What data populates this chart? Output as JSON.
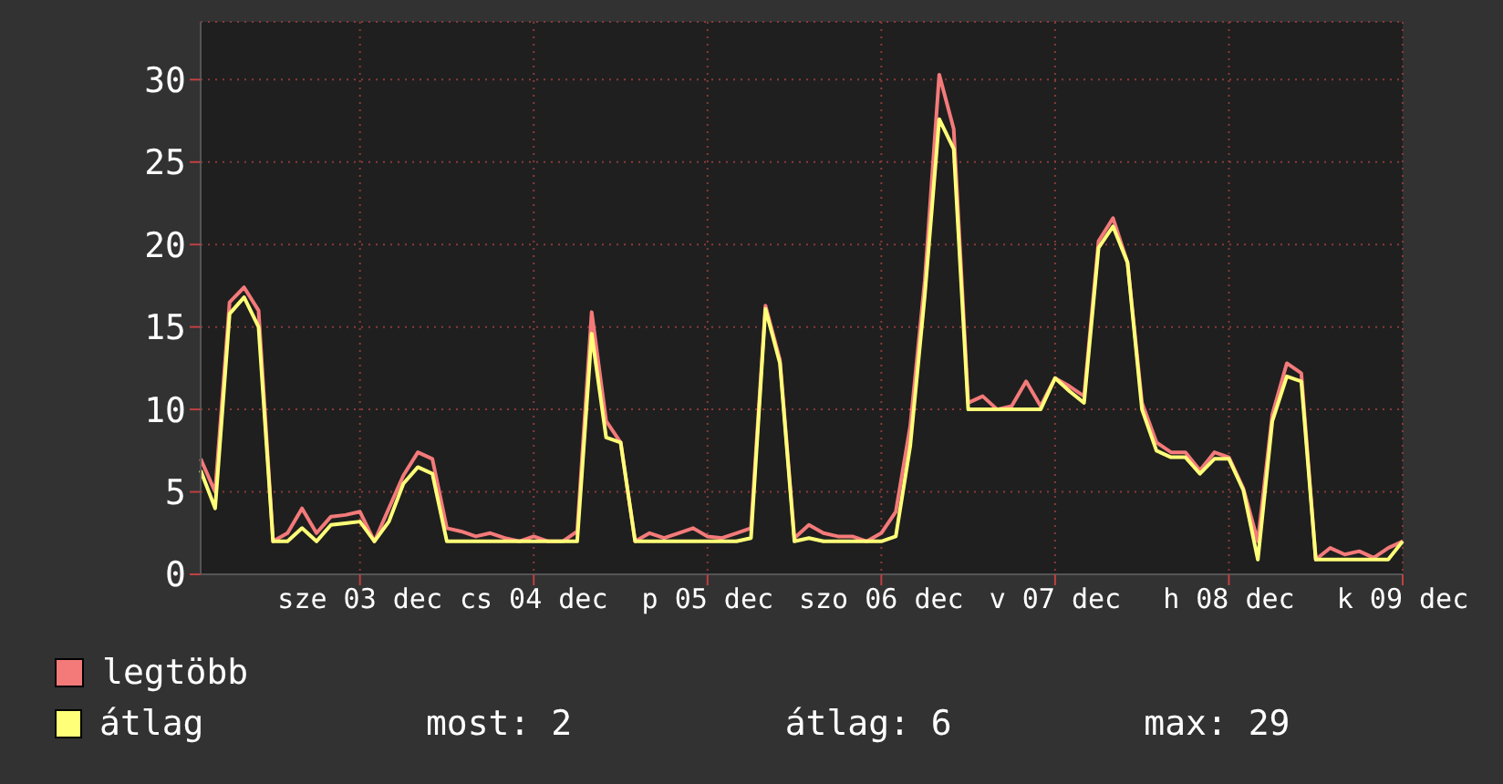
{
  "chart_data": {
    "type": "line",
    "categories": [
      null,
      null,
      null,
      null,
      null,
      null,
      null,
      null,
      null,
      null,
      null,
      "sze 03 dec",
      null,
      null,
      null,
      null,
      null,
      null,
      null,
      null,
      null,
      null,
      null,
      "cs 04 dec",
      null,
      null,
      null,
      null,
      null,
      null,
      null,
      null,
      null,
      null,
      null,
      "p 05 dec",
      null,
      null,
      null,
      null,
      null,
      null,
      null,
      null,
      null,
      null,
      null,
      "szo 06 dec",
      null,
      null,
      null,
      null,
      null,
      null,
      null,
      null,
      null,
      null,
      null,
      "v 07 dec",
      null,
      null,
      null,
      null,
      null,
      null,
      null,
      null,
      null,
      null,
      null,
      "h 08 dec",
      null,
      null,
      null,
      null,
      null,
      null,
      null,
      null,
      null,
      null,
      null,
      "k 09 dec"
    ],
    "series": [
      {
        "name": "legtöbb",
        "color": "#f47a7a",
        "values": [
          7.0,
          5.0,
          16.5,
          17.4,
          16.0,
          2.0,
          2.5,
          4.0,
          2.5,
          3.5,
          3.6,
          3.8,
          2.0,
          4.0,
          6.0,
          7.4,
          7.0,
          2.8,
          2.6,
          2.3,
          2.5,
          2.2,
          2.0,
          2.3,
          2.0,
          2.0,
          2.6,
          15.9,
          9.3,
          8.0,
          2.0,
          2.5,
          2.2,
          2.5,
          2.8,
          2.3,
          2.2,
          2.5,
          2.8,
          16.3,
          13.0,
          2.2,
          3.0,
          2.5,
          2.3,
          2.3,
          2.0,
          2.5,
          3.8,
          9.0,
          17.8,
          30.3,
          27.0,
          10.4,
          10.8,
          10.0,
          10.2,
          11.7,
          10.2,
          11.9,
          11.4,
          10.8,
          20.2,
          21.6,
          18.9,
          10.4,
          8.0,
          7.4,
          7.4,
          6.3,
          7.4,
          7.1,
          5.2,
          2.0,
          9.7,
          12.8,
          12.2,
          0.9,
          1.6,
          1.2,
          1.4,
          1.0,
          1.6,
          2.0
        ]
      },
      {
        "name": "átlag",
        "color": "#ffff78",
        "values": [
          6.3,
          4.0,
          15.8,
          16.8,
          15.0,
          2.0,
          2.0,
          2.8,
          2.0,
          3.0,
          3.1,
          3.2,
          2.0,
          3.2,
          5.5,
          6.5,
          6.1,
          2.0,
          2.0,
          2.0,
          2.0,
          2.0,
          2.0,
          2.0,
          2.0,
          2.0,
          2.0,
          14.6,
          8.3,
          8.0,
          2.0,
          2.0,
          2.0,
          2.0,
          2.0,
          2.0,
          2.0,
          2.0,
          2.2,
          16.1,
          12.8,
          2.0,
          2.2,
          2.0,
          2.0,
          2.0,
          2.0,
          2.0,
          2.3,
          7.8,
          16.9,
          27.6,
          25.8,
          10.0,
          10.0,
          10.0,
          10.0,
          10.0,
          10.0,
          11.9,
          11.1,
          10.4,
          19.8,
          21.1,
          18.9,
          10.0,
          7.5,
          7.1,
          7.1,
          6.1,
          7.0,
          7.0,
          5.1,
          0.9,
          9.3,
          12.0,
          11.7,
          0.9,
          0.9,
          0.9,
          0.9,
          0.9,
          0.9,
          2.0
        ]
      }
    ],
    "ylim": [
      0,
      33.5
    ],
    "yticks": [
      0,
      5,
      10,
      15,
      20,
      25,
      30
    ],
    "grid": true,
    "legend": "bottom left",
    "marker": "none",
    "line_style": "solid",
    "annotations": [
      "most: 2",
      "átlag: 6",
      "max: 29"
    ]
  }
}
